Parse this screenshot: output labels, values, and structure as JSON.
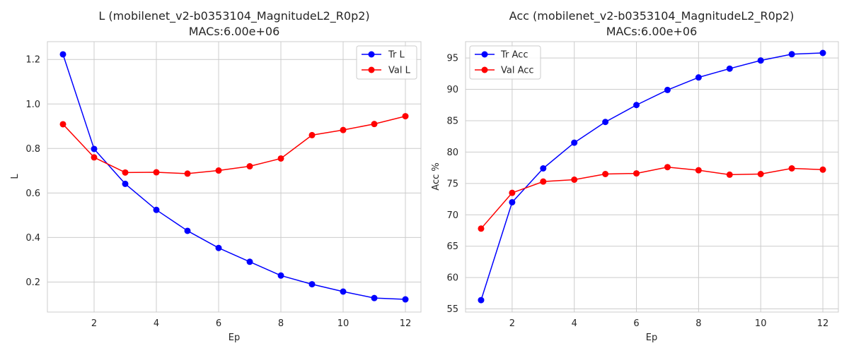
{
  "chart_data": [
    {
      "type": "line",
      "title": "L (mobilenet_v2-b0353104_MagnitudeL2_R0p2)",
      "subtitle": "MACs:6.00e+06",
      "xlabel": "Ep",
      "ylabel": "L",
      "x": [
        1,
        2,
        3,
        4,
        5,
        6,
        7,
        8,
        9,
        10,
        11,
        12
      ],
      "xlim": [
        0.5,
        12.5
      ],
      "ylim": [
        0.065,
        1.28
      ],
      "xticks": [
        2,
        4,
        6,
        8,
        10,
        12
      ],
      "yticks": [
        0.2,
        0.4,
        0.6,
        0.8,
        1.0,
        1.2
      ],
      "ytick_labels": [
        "0.2",
        "0.4",
        "0.6",
        "0.8",
        "1.0",
        "1.2"
      ],
      "grid": true,
      "legend_position": "top-right",
      "series": [
        {
          "name": "Tr L",
          "color": "#0000ff",
          "values": [
            1.223,
            0.798,
            0.641,
            0.524,
            0.43,
            0.353,
            0.291,
            0.229,
            0.19,
            0.157,
            0.128,
            0.122
          ]
        },
        {
          "name": "Val L",
          "color": "#ff0000",
          "values": [
            0.909,
            0.76,
            0.692,
            0.693,
            0.687,
            0.701,
            0.72,
            0.755,
            0.86,
            0.883,
            0.91,
            0.945
          ]
        }
      ]
    },
    {
      "type": "line",
      "title": "Acc (mobilenet_v2-b0353104_MagnitudeL2_R0p2)",
      "subtitle": "MACs:6.00e+06",
      "xlabel": "Ep",
      "ylabel": "Acc %",
      "x": [
        1,
        2,
        3,
        4,
        5,
        6,
        7,
        8,
        9,
        10,
        11,
        12
      ],
      "xlim": [
        0.5,
        12.5
      ],
      "ylim": [
        54.5,
        97.6
      ],
      "xticks": [
        2,
        4,
        6,
        8,
        10,
        12
      ],
      "yticks": [
        55,
        60,
        65,
        70,
        75,
        80,
        85,
        90,
        95
      ],
      "ytick_labels": [
        "55",
        "60",
        "65",
        "70",
        "75",
        "80",
        "85",
        "90",
        "95"
      ],
      "grid": true,
      "legend_position": "top-left",
      "series": [
        {
          "name": "Tr Acc",
          "color": "#0000ff",
          "values": [
            56.4,
            72.0,
            77.4,
            81.5,
            84.8,
            87.5,
            89.9,
            91.9,
            93.3,
            94.6,
            95.6,
            95.8
          ]
        },
        {
          "name": "Val Acc",
          "color": "#ff0000",
          "values": [
            67.8,
            73.5,
            75.3,
            75.6,
            76.5,
            76.6,
            77.6,
            77.1,
            76.4,
            76.5,
            77.4,
            77.2
          ]
        }
      ]
    }
  ]
}
